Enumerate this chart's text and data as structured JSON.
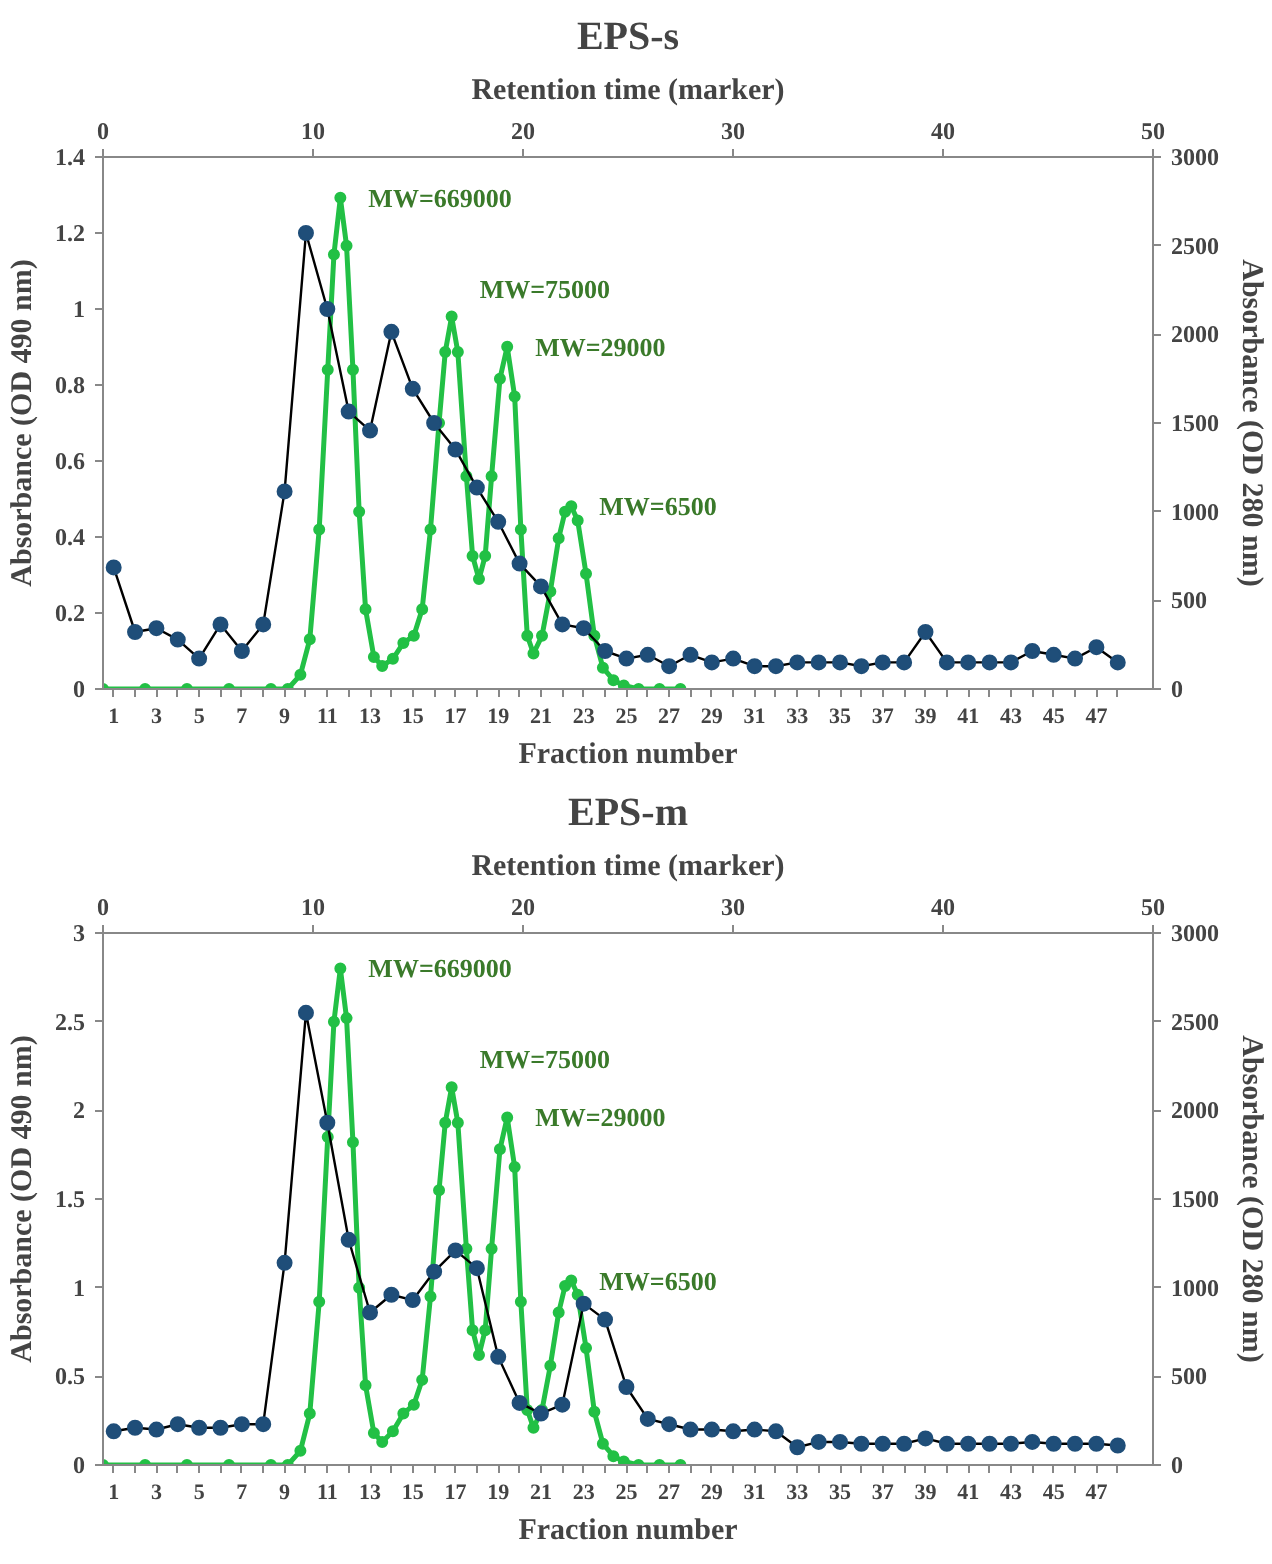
{
  "chart_data": [
    {
      "type": "line",
      "title": "EPS-s",
      "xlabel": "Fraction number",
      "ylabel": "Absorbance (OD 490 nm)",
      "y2label": "Absorbance (OD 280 nm)",
      "x2label": "Retention time (marker)",
      "xlim": [
        0.5,
        49.65
      ],
      "xticks": [
        1,
        {
          "value": 2,
          "label": null
        },
        3,
        {
          "value": 4,
          "label": null
        },
        5,
        {
          "value": 6,
          "label": null
        },
        7,
        {
          "value": 8,
          "label": null
        },
        9,
        {
          "value": 10,
          "label": null
        },
        11,
        {
          "value": 12,
          "label": null
        },
        13,
        {
          "value": 14,
          "label": null
        },
        15,
        {
          "value": 16,
          "label": null
        },
        17,
        {
          "value": 18,
          "label": null
        },
        19,
        {
          "value": 20,
          "label": null
        },
        21,
        {
          "value": 22,
          "label": null
        },
        23,
        {
          "value": 24,
          "label": null
        },
        25,
        {
          "value": 26,
          "label": null
        },
        27,
        {
          "value": 28,
          "label": null
        },
        29,
        {
          "value": 30,
          "label": null
        },
        31,
        {
          "value": 32,
          "label": null
        },
        33,
        {
          "value": 34,
          "label": null
        },
        35,
        {
          "value": 36,
          "label": null
        },
        37,
        {
          "value": 38,
          "label": null
        },
        39,
        {
          "value": 40,
          "label": null
        },
        41,
        {
          "value": 42,
          "label": null
        },
        43,
        {
          "value": 44,
          "label": null
        },
        45,
        {
          "value": 46,
          "label": null
        },
        47,
        {
          "value": 48,
          "label": null
        }
      ],
      "ylim": [
        0,
        1.4
      ],
      "yticks": [
        0,
        0.2,
        0.4,
        0.6,
        0.8,
        1,
        1.2,
        1.4
      ],
      "y2lim": [
        0,
        3000
      ],
      "y2ticks": [
        0,
        500,
        1000,
        1500,
        2000,
        2500,
        3000
      ],
      "x2lim": [
        0,
        50
      ],
      "x2ticks": [
        0,
        10,
        20,
        30,
        40,
        50
      ],
      "grid": false,
      "marker": "circle",
      "line_style": "solid",
      "series": [
        {
          "color": "#1f4e79",
          "x": [
            1,
            2,
            3,
            4,
            5,
            6,
            7,
            8,
            9,
            10,
            11,
            12,
            13,
            14,
            15,
            16,
            17,
            18,
            19,
            20,
            21,
            22,
            23,
            24,
            25,
            26,
            27,
            28,
            29,
            30,
            31,
            32,
            33,
            34,
            35,
            36,
            37,
            38,
            39,
            40,
            41,
            42,
            43,
            44,
            45,
            46,
            47,
            48
          ],
          "values": [
            0.32,
            0.15,
            0.16,
            0.13,
            0.08,
            0.17,
            0.1,
            0.17,
            0.52,
            1.2,
            1.0,
            0.73,
            0.68,
            0.94,
            0.79,
            0.7,
            0.63,
            0.53,
            0.44,
            0.33,
            0.27,
            0.17,
            0.16,
            0.1,
            0.08,
            0.09,
            0.06,
            0.09,
            0.07,
            0.08,
            0.06,
            0.06,
            0.07,
            0.07,
            0.07,
            0.06,
            0.07,
            0.07,
            0.15,
            0.07,
            0.07,
            0.07,
            0.07,
            0.1,
            0.09,
            0.08,
            0.11,
            0.07
          ]
        },
        {
          "color": "#22c045",
          "axis": "y2",
          "x": [
            0.5,
            2.47,
            4.43,
            6.4,
            8.36,
            9.15,
            9.74,
            10.18,
            10.62,
            11.02,
            11.31,
            11.61,
            11.9,
            12.2,
            12.49,
            12.79,
            13.18,
            13.57,
            14.07,
            14.56,
            15.05,
            15.44,
            15.83,
            16.23,
            16.52,
            16.82,
            17.11,
            17.51,
            17.8,
            18.1,
            18.39,
            18.69,
            19.08,
            19.42,
            19.77,
            20.06,
            20.36,
            20.65,
            21.05,
            21.44,
            21.83,
            22.13,
            22.42,
            22.72,
            23.11,
            23.5,
            23.9,
            24.39,
            24.88,
            25.57,
            26.55,
            27.53
          ],
          "values": [
            0,
            0,
            0,
            0,
            0,
            0,
            80,
            280,
            900,
            1800,
            2450,
            2770,
            2500,
            1800,
            1000,
            450,
            180,
            130,
            170,
            260,
            300,
            450,
            900,
            1500,
            1900,
            2100,
            1900,
            1200,
            750,
            620,
            750,
            1200,
            1750,
            1930,
            1650,
            900,
            300,
            200,
            300,
            550,
            850,
            1000,
            1030,
            950,
            650,
            300,
            120,
            50,
            20,
            0,
            0,
            0
          ]
        }
      ],
      "annotations": [
        "MW=669000",
        "MW=75000",
        "MW=29000",
        "MW=6500"
      ]
    },
    {
      "type": "line",
      "title": "EPS-m",
      "xlabel": "Fraction number",
      "ylabel": "Absorbance (OD 490 nm)",
      "y2label": "Absorbance (OD 280 nm)",
      "x2label": "Retention time (marker)",
      "xlim": [
        0.5,
        49.65
      ],
      "xticks": [
        1,
        {
          "value": 2,
          "label": null
        },
        3,
        {
          "value": 4,
          "label": null
        },
        5,
        {
          "value": 6,
          "label": null
        },
        7,
        {
          "value": 8,
          "label": null
        },
        9,
        {
          "value": 10,
          "label": null
        },
        11,
        {
          "value": 12,
          "label": null
        },
        13,
        {
          "value": 14,
          "label": null
        },
        15,
        {
          "value": 16,
          "label": null
        },
        17,
        {
          "value": 18,
          "label": null
        },
        19,
        {
          "value": 20,
          "label": null
        },
        21,
        {
          "value": 22,
          "label": null
        },
        23,
        {
          "value": 24,
          "label": null
        },
        25,
        {
          "value": 26,
          "label": null
        },
        27,
        {
          "value": 28,
          "label": null
        },
        29,
        {
          "value": 30,
          "label": null
        },
        31,
        {
          "value": 32,
          "label": null
        },
        33,
        {
          "value": 34,
          "label": null
        },
        35,
        {
          "value": 36,
          "label": null
        },
        37,
        {
          "value": 38,
          "label": null
        },
        39,
        {
          "value": 40,
          "label": null
        },
        41,
        {
          "value": 42,
          "label": null
        },
        43,
        {
          "value": 44,
          "label": null
        },
        45,
        {
          "value": 46,
          "label": null
        },
        47,
        {
          "value": 48,
          "label": null
        }
      ],
      "ylim": [
        0,
        3
      ],
      "yticks": [
        0,
        0.5,
        1,
        1.5,
        2,
        2.5,
        3
      ],
      "y2lim": [
        0,
        3000
      ],
      "y2ticks": [
        0,
        500,
        1000,
        1500,
        2000,
        2500,
        3000
      ],
      "x2lim": [
        0,
        50
      ],
      "x2ticks": [
        0,
        10,
        20,
        30,
        40,
        50
      ],
      "grid": false,
      "marker": "circle",
      "line_style": "solid",
      "series": [
        {
          "color": "#1f4e79",
          "x": [
            1,
            2,
            3,
            4,
            5,
            6,
            7,
            8,
            9,
            10,
            11,
            12,
            13,
            14,
            15,
            16,
            17,
            18,
            19,
            20,
            21,
            22,
            23,
            24,
            25,
            26,
            27,
            28,
            29,
            30,
            31,
            32,
            33,
            34,
            35,
            36,
            37,
            38,
            39,
            40,
            41,
            42,
            43,
            44,
            45,
            46,
            47,
            48
          ],
          "values": [
            0.19,
            0.21,
            0.2,
            0.23,
            0.21,
            0.21,
            0.23,
            0.23,
            1.14,
            2.55,
            1.93,
            1.27,
            0.86,
            0.96,
            0.93,
            1.09,
            1.21,
            1.11,
            0.61,
            0.35,
            0.29,
            0.34,
            0.91,
            0.82,
            0.44,
            0.26,
            0.23,
            0.2,
            0.2,
            0.19,
            0.2,
            0.19,
            0.1,
            0.13,
            0.13,
            0.12,
            0.12,
            0.12,
            0.15,
            0.12,
            0.12,
            0.12,
            0.12,
            0.13,
            0.12,
            0.12,
            0.12,
            0.11
          ]
        },
        {
          "color": "#22c045",
          "axis": "y2",
          "x": [
            0.5,
            2.47,
            4.43,
            6.4,
            8.36,
            9.15,
            9.74,
            10.18,
            10.62,
            11.02,
            11.31,
            11.61,
            11.9,
            12.2,
            12.49,
            12.79,
            13.18,
            13.57,
            14.07,
            14.56,
            15.05,
            15.44,
            15.83,
            16.23,
            16.52,
            16.82,
            17.11,
            17.51,
            17.8,
            18.1,
            18.39,
            18.69,
            19.08,
            19.42,
            19.77,
            20.06,
            20.36,
            20.65,
            21.05,
            21.44,
            21.83,
            22.13,
            22.42,
            22.72,
            23.11,
            23.5,
            23.9,
            24.39,
            24.88,
            25.57,
            26.55,
            27.53
          ],
          "values": [
            0,
            0,
            0,
            0,
            0,
            0,
            80,
            290,
            920,
            1850,
            2500,
            2800,
            2520,
            1820,
            1000,
            450,
            180,
            130,
            190,
            290,
            340,
            480,
            950,
            1550,
            1930,
            2130,
            1930,
            1220,
            760,
            620,
            760,
            1220,
            1780,
            1960,
            1680,
            920,
            310,
            210,
            310,
            560,
            860,
            1010,
            1040,
            960,
            660,
            300,
            120,
            50,
            20,
            0,
            0,
            0
          ]
        }
      ],
      "annotations": [
        "MW=669000",
        "MW=75000",
        "MW=29000",
        "MW=6500"
      ]
    }
  ]
}
